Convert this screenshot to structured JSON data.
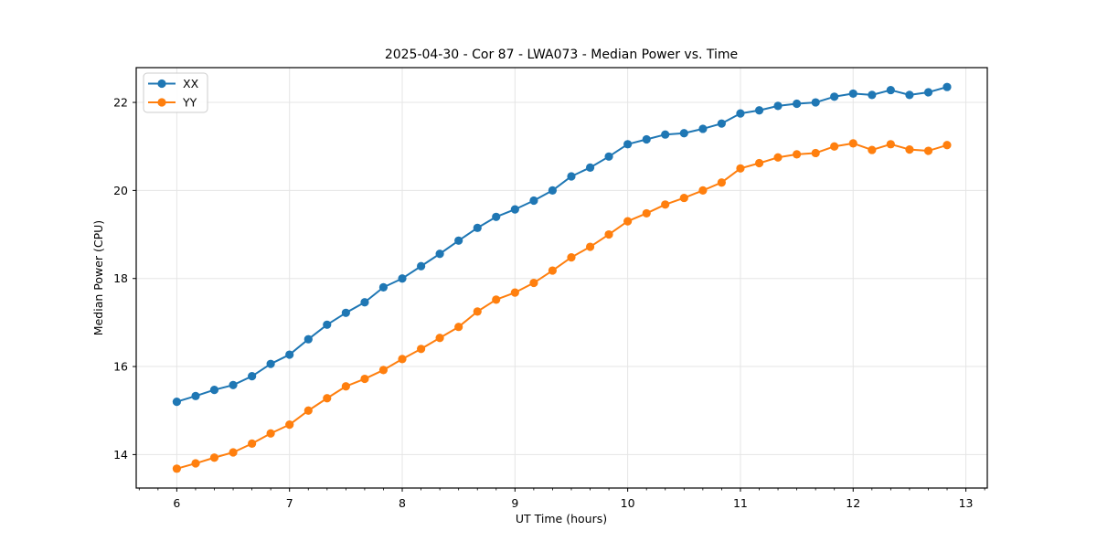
{
  "chart_data": {
    "type": "line",
    "title": "2025-04-30 - Cor 87 - LWA073 - Median Power vs. Time",
    "xlabel": "UT Time (hours)",
    "ylabel": "Median Power (CPU)",
    "xlim": [
      5.64,
      13.19
    ],
    "ylim": [
      13.24,
      22.79
    ],
    "x_ticks": [
      6,
      7,
      8,
      9,
      10,
      11,
      12,
      13
    ],
    "y_ticks": [
      14,
      16,
      18,
      20,
      22
    ],
    "x_minor_step_hours": 0.16667,
    "grid": true,
    "grid_color": "#e5e5e5",
    "spine_color": "#000000",
    "legend_position": "upper left",
    "x": [
      6.0,
      6.167,
      6.333,
      6.5,
      6.667,
      6.833,
      7.0,
      7.167,
      7.333,
      7.5,
      7.667,
      7.833,
      8.0,
      8.167,
      8.333,
      8.5,
      8.667,
      8.833,
      9.0,
      9.167,
      9.333,
      9.5,
      9.667,
      9.833,
      10.0,
      10.167,
      10.333,
      10.5,
      10.667,
      10.833,
      11.0,
      11.167,
      11.333,
      11.5,
      11.667,
      11.833,
      12.0,
      12.167,
      12.333,
      12.5,
      12.667,
      12.833
    ],
    "series": [
      {
        "name": "XX",
        "color": "#1f77b4",
        "values": [
          15.2,
          15.33,
          15.47,
          15.58,
          15.78,
          16.06,
          16.27,
          16.62,
          16.95,
          17.22,
          17.46,
          17.8,
          18.0,
          18.28,
          18.56,
          18.86,
          19.15,
          19.4,
          19.57,
          19.77,
          20.0,
          20.32,
          20.52,
          20.77,
          21.05,
          21.16,
          21.27,
          21.3,
          21.4,
          21.52,
          21.75,
          21.82,
          21.92,
          21.97,
          22.0,
          22.13,
          22.2,
          22.17,
          22.28,
          22.17,
          22.23,
          22.35
        ]
      },
      {
        "name": "YY",
        "color": "#ff7f0e",
        "values": [
          13.68,
          13.8,
          13.93,
          14.05,
          14.25,
          14.48,
          14.68,
          15.0,
          15.28,
          15.55,
          15.72,
          15.92,
          16.17,
          16.4,
          16.65,
          16.9,
          17.25,
          17.52,
          17.68,
          17.9,
          18.18,
          18.48,
          18.72,
          19.0,
          19.3,
          19.48,
          19.68,
          19.83,
          20.0,
          20.18,
          20.5,
          20.62,
          20.75,
          20.82,
          20.85,
          21.0,
          21.07,
          20.92,
          21.05,
          20.93,
          20.9,
          21.03
        ]
      }
    ]
  }
}
